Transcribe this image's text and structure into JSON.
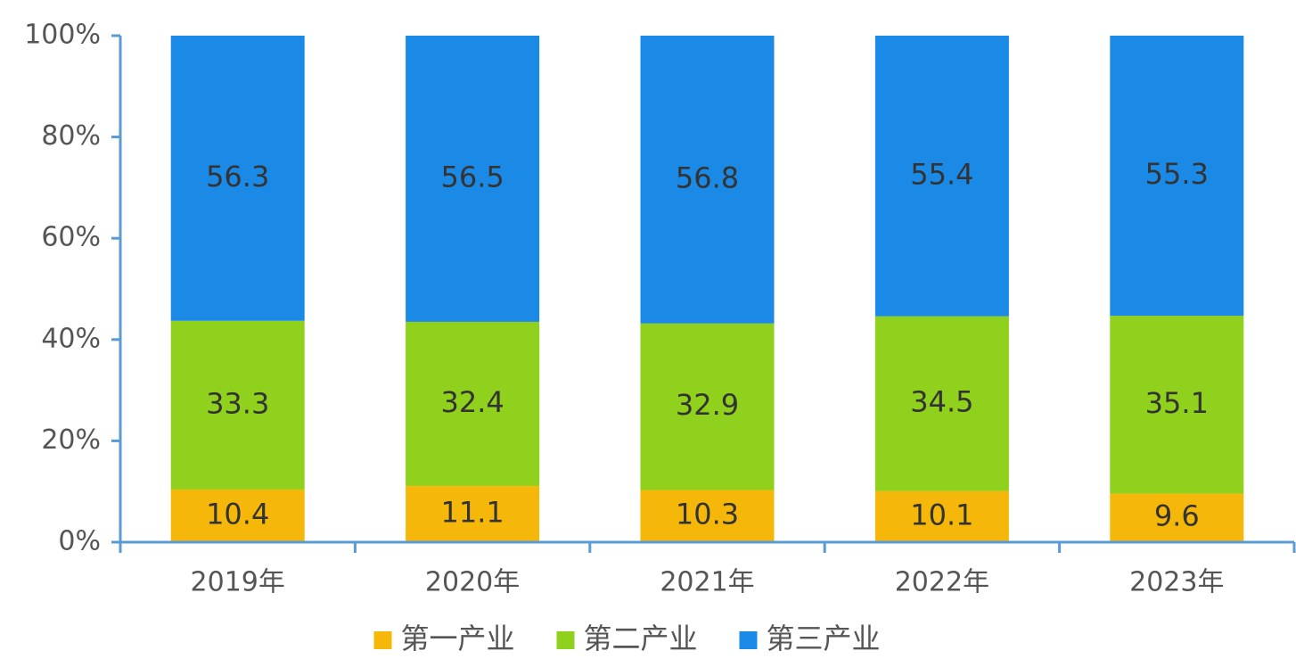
{
  "chart_data": {
    "type": "bar",
    "stacked": true,
    "categories": [
      "2019年",
      "2020年",
      "2021年",
      "2022年",
      "2023年"
    ],
    "series": [
      {
        "name": "第一产业",
        "color": "#f5b70a",
        "values": [
          10.4,
          11.1,
          10.3,
          10.1,
          9.6
        ]
      },
      {
        "name": "第二产业",
        "color": "#8fd11c",
        "values": [
          33.3,
          32.4,
          32.9,
          34.5,
          35.1
        ]
      },
      {
        "name": "第三产业",
        "color": "#1b8ae6",
        "values": [
          56.3,
          56.5,
          56.8,
          55.4,
          55.3
        ]
      }
    ],
    "ylim": [
      0,
      100
    ],
    "yticks": [
      {
        "value": 0,
        "label": "0%"
      },
      {
        "value": 20,
        "label": "20%"
      },
      {
        "value": 40,
        "label": "40%"
      },
      {
        "value": 60,
        "label": "60%"
      },
      {
        "value": 80,
        "label": "80%"
      },
      {
        "value": 100,
        "label": "100%"
      }
    ],
    "legend": "bottom"
  }
}
